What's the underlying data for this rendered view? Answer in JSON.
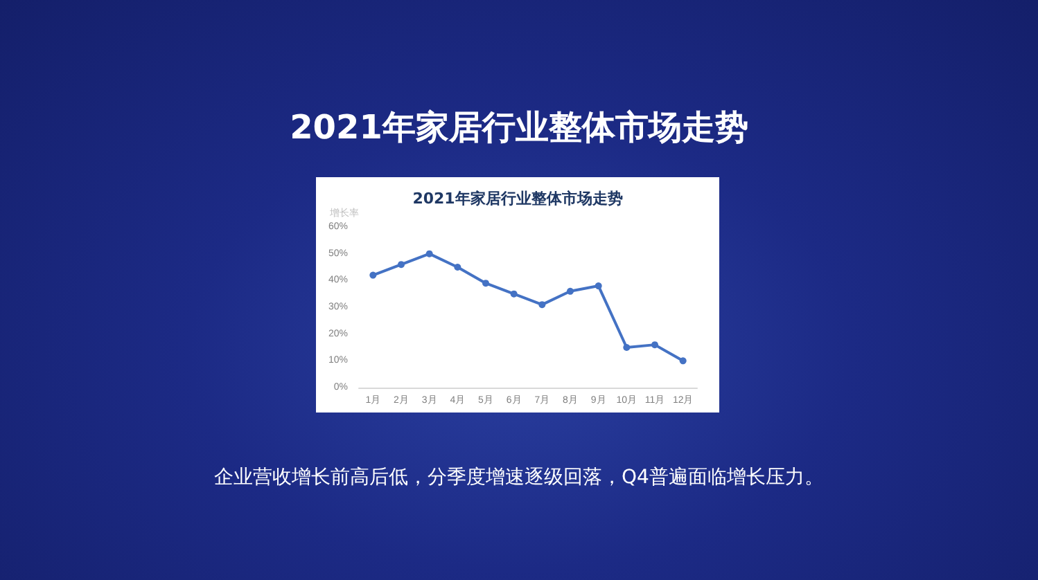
{
  "chart_data": {
    "type": "line",
    "title": "2021年家居行业整体市场走势",
    "subtitle": "2021年家居行业整体市场走势",
    "ylabel": "增长率",
    "annotations": [
      "企业营收增长前高后低，分季度增速逐级回落，Q4普遍面临增长压力。"
    ],
    "categories": [
      "1月",
      "2月",
      "3月",
      "4月",
      "5月",
      "6月",
      "7月",
      "8月",
      "9月",
      "10月",
      "11月",
      "12月"
    ],
    "series": [
      {
        "color": "#4472c4",
        "values": [
          42,
          46,
          50,
          45,
          39,
          35,
          31,
          36,
          38,
          15,
          16,
          10
        ]
      }
    ],
    "ylim": [
      0,
      60
    ],
    "yticks": [
      {
        "value": 0,
        "label": "0%"
      },
      {
        "value": 10,
        "label": "10%"
      },
      {
        "value": 20,
        "label": "20%"
      },
      {
        "value": 30,
        "label": "30%"
      },
      {
        "value": 40,
        "label": "40%"
      },
      {
        "value": 50,
        "label": "50%"
      },
      {
        "value": 60,
        "label": "60%"
      }
    ],
    "grid": false,
    "marker": "circle",
    "line_style": "solid"
  }
}
